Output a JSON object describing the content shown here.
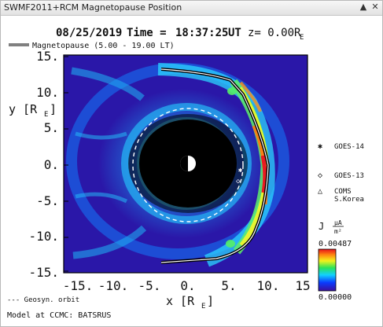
{
  "window": {
    "title": "SWMF2011+RCM Magnetopause Position",
    "collapse_icon": "▲",
    "close_icon": "✕"
  },
  "plot": {
    "header": {
      "date": "08/25/2019",
      "time_label": "Time =",
      "time": "18:37:25",
      "time_unit": "UT",
      "z_label": "z= 0.00R",
      "z_sub": "E"
    },
    "legend_magnetopause": "Magnetopause (5.00 - 19.00 LT)",
    "y_axis_label": "y [R",
    "y_axis_sub": "E",
    "y_axis_close": "]",
    "x_axis_label": "x [R",
    "x_axis_sub": "E",
    "x_axis_close": "]",
    "y_ticks": [
      "15.",
      "10.",
      "5.",
      "0.",
      "-5.",
      "-10.",
      "-15."
    ],
    "x_ticks": [
      "-15.",
      "-10.",
      "-5.",
      "0.",
      "5.",
      "10.",
      "15"
    ],
    "geosync_legend": "--- Geosyn. orbit",
    "credit": "Model at CCMC: BATSRUS",
    "satellites": [
      {
        "marker": "✱",
        "name": "GOES-14"
      },
      {
        "marker": "◇",
        "name": "GOES-13"
      },
      {
        "marker": "△",
        "name": "COMS",
        "name2": "S.Korea"
      }
    ],
    "colorbar": {
      "label_prefix": "J",
      "unit_top": "μA",
      "unit_bottom": "m²",
      "max": "0.00487",
      "min": "0.00000"
    },
    "colors": {
      "background": "#2a17a8",
      "magnetopause": "#000000",
      "geosync": "#ffffff"
    }
  }
}
